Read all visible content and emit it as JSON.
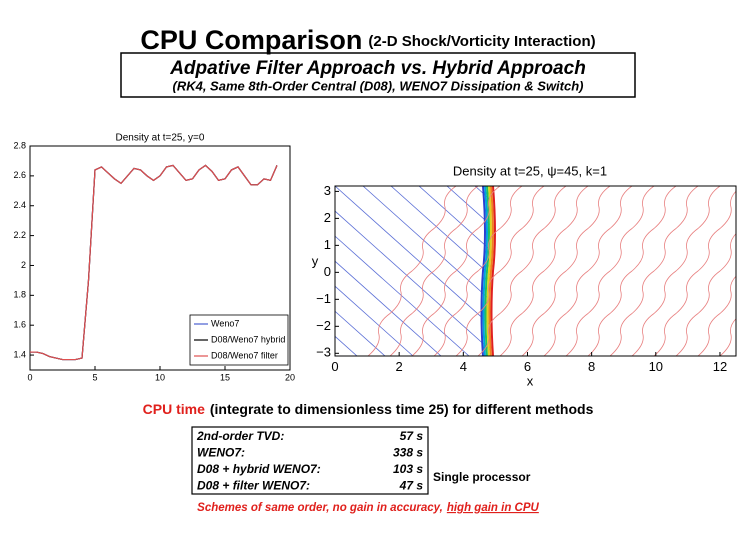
{
  "slide": {
    "title": "CPU Comparison",
    "title_note": "(2-D Shock/Vorticity Interaction)",
    "subtitle": "Adpative Filter Approach vs. Hybrid Approach",
    "subtitle_note": "(RK4, Same 8th-Order Central (D08), WENO7 Dissipation & Switch)",
    "cpu_heading": "CPU time",
    "cpu_heading_rest": "(integrate to dimensionless time 25) for different methods",
    "table": {
      "rows": [
        [
          "2nd-order TVD:",
          "57 s"
        ],
        [
          "WENO7:",
          "338 s"
        ],
        [
          "D08 + hybrid WENO7:",
          "103 s"
        ],
        [
          "D08 + filter WENO7:",
          "47 s"
        ]
      ]
    },
    "table_note": "Single processor",
    "footnote": "Schemes of same order,  no gain in accuracy,",
    "footnote_underlined": "high gain in CPU"
  },
  "chart_data": [
    {
      "type": "line",
      "title": "Density at t=25, y=0",
      "x": [
        0,
        0.5,
        1,
        1.5,
        2,
        2.5,
        3,
        3.5,
        4,
        4.5,
        5,
        5.5,
        6,
        6.5,
        7,
        7.5,
        8,
        8.5,
        9,
        9.5,
        10,
        10.5,
        11,
        11.5,
        12,
        12.5,
        13,
        13.5,
        14,
        14.5,
        15,
        15.5,
        16,
        16.5,
        17,
        17.5,
        18,
        18.5,
        19
      ],
      "series": [
        {
          "name": "Weno7",
          "color": "#4a5fd0",
          "values": [
            1.42,
            1.42,
            1.41,
            1.39,
            1.38,
            1.37,
            1.37,
            1.37,
            1.38,
            1.9,
            2.64,
            2.66,
            2.62,
            2.58,
            2.55,
            2.6,
            2.65,
            2.64,
            2.6,
            2.57,
            2.6,
            2.66,
            2.67,
            2.62,
            2.57,
            2.58,
            2.64,
            2.67,
            2.63,
            2.57,
            2.58,
            2.64,
            2.66,
            2.6,
            2.54,
            2.54,
            2.58,
            2.57,
            2.67
          ]
        },
        {
          "name": "D08/Weno7 hybrid",
          "color": "#000000",
          "values": [
            1.42,
            1.42,
            1.41,
            1.39,
            1.38,
            1.37,
            1.37,
            1.37,
            1.38,
            1.9,
            2.64,
            2.66,
            2.62,
            2.58,
            2.55,
            2.6,
            2.65,
            2.64,
            2.6,
            2.57,
            2.6,
            2.66,
            2.67,
            2.62,
            2.57,
            2.58,
            2.64,
            2.67,
            2.63,
            2.57,
            2.58,
            2.64,
            2.66,
            2.6,
            2.54,
            2.54,
            2.58,
            2.57,
            2.67
          ]
        },
        {
          "name": "D08/Weno7 filter",
          "color": "#e05050",
          "values": [
            1.42,
            1.42,
            1.41,
            1.39,
            1.38,
            1.37,
            1.37,
            1.37,
            1.38,
            1.9,
            2.64,
            2.66,
            2.62,
            2.58,
            2.55,
            2.6,
            2.65,
            2.64,
            2.6,
            2.57,
            2.6,
            2.66,
            2.67,
            2.62,
            2.57,
            2.58,
            2.64,
            2.67,
            2.63,
            2.57,
            2.58,
            2.64,
            2.66,
            2.6,
            2.54,
            2.54,
            2.58,
            2.57,
            2.67
          ]
        }
      ],
      "xlim": [
        0,
        20
      ],
      "xticks": [
        0,
        5,
        10,
        15,
        20
      ],
      "ylim": [
        1.3,
        2.8
      ],
      "yticks": [
        1.4,
        1.6,
        1.8,
        2,
        2.2,
        2.4,
        2.6,
        2.8
      ],
      "legend": "lower right"
    },
    {
      "type": "contour",
      "title": "Density at t=25, ψ=45, k=1",
      "xlabel": "x",
      "ylabel": "y",
      "xlim": [
        0,
        12.5
      ],
      "xticks": [
        0,
        2,
        4,
        6,
        8,
        10,
        12
      ],
      "ylim": [
        -3.1,
        3.2
      ],
      "yticks": [
        {
          "value": -3,
          "label": "−3"
        },
        {
          "value": -2,
          "label": "−2"
        },
        {
          "value": -1,
          "label": "−1"
        },
        0,
        1,
        2,
        3
      ]
    }
  ]
}
